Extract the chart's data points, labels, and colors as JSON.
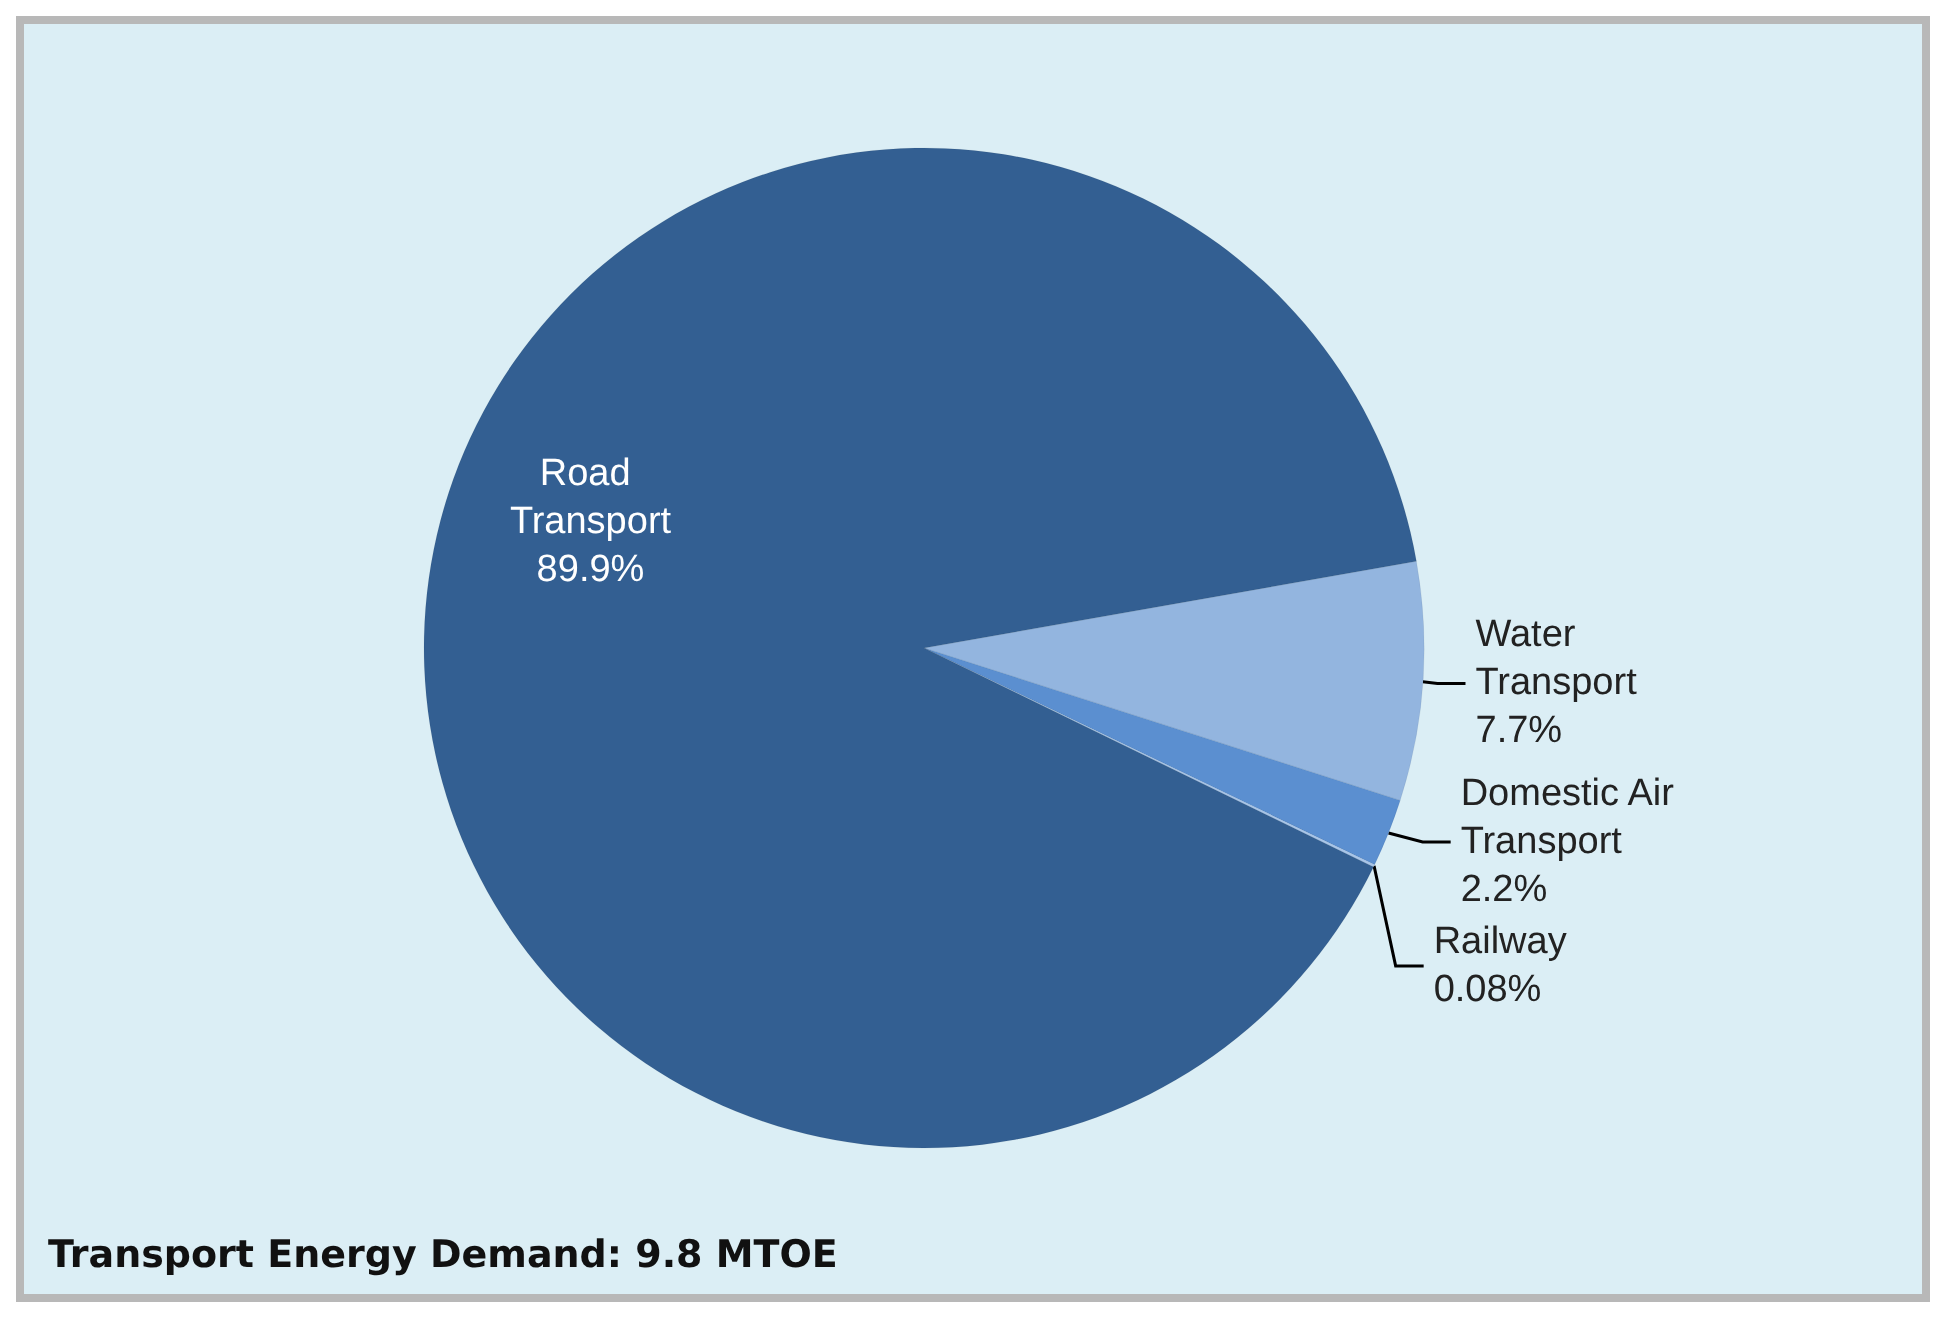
{
  "chart_data": {
    "type": "pie",
    "categories": [
      "Water Transport",
      "Domestic Air Transport",
      "Railway",
      "Road Transport"
    ],
    "values": [
      7.7,
      2.2,
      0.08,
      89.9
    ],
    "value_labels": [
      "7.7%",
      "2.2%",
      "0.08%",
      "89.9%"
    ],
    "colors": [
      "#93b5df",
      "#5b8fd0",
      "#a9c6ea",
      "#335f92"
    ],
    "data_labels": true,
    "legend": false,
    "annotations": [
      "Transport Energy Demand: 9.8 MTOE"
    ]
  }
}
